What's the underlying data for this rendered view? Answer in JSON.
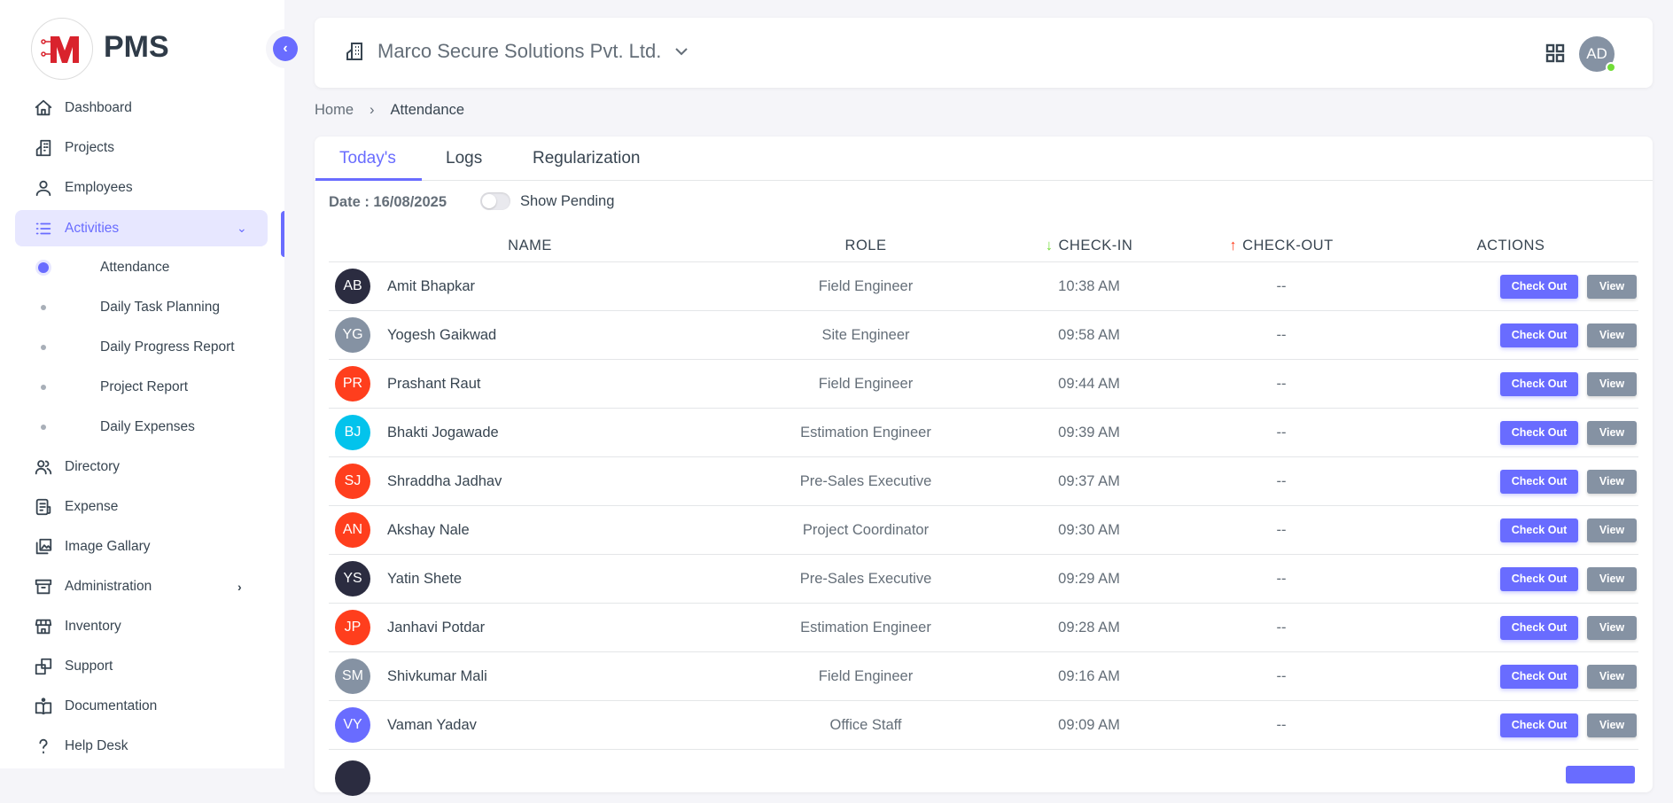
{
  "brand": {
    "name": "PMS",
    "logo_letter": "M"
  },
  "sidebar": {
    "items": [
      {
        "label": "Dashboard",
        "icon": "home-icon"
      },
      {
        "label": "Projects",
        "icon": "building-icon"
      },
      {
        "label": "Employees",
        "icon": "user-icon"
      },
      {
        "label": "Activities",
        "icon": "list-icon",
        "active": true,
        "expanded": true
      },
      {
        "label": "Directory",
        "icon": "contacts-icon"
      },
      {
        "label": "Expense",
        "icon": "receipt-icon"
      },
      {
        "label": "Image Gallary",
        "icon": "gallery-icon"
      },
      {
        "label": "Administration",
        "icon": "archive-icon"
      },
      {
        "label": "Inventory",
        "icon": "store-icon"
      },
      {
        "label": "Support",
        "icon": "copy-icon"
      },
      {
        "label": "Documentation",
        "icon": "book-icon"
      },
      {
        "label": "Help Desk",
        "icon": "question-icon"
      }
    ],
    "sub_items": [
      {
        "label": "Attendance",
        "active": true
      },
      {
        "label": "Daily Task Planning"
      },
      {
        "label": "Daily Progress Report"
      },
      {
        "label": "Project Report"
      },
      {
        "label": "Daily Expenses"
      }
    ]
  },
  "header": {
    "organization": "Marco Secure Solutions Pvt. Ltd.",
    "user_initials": "AD",
    "status_color": "#71dd37"
  },
  "breadcrumb": [
    "Home",
    "Attendance"
  ],
  "tabs": [
    "Today's",
    "Logs",
    "Regularization"
  ],
  "active_tab": "Today's",
  "filters": {
    "date_label": "Date : 16/08/2025",
    "show_pending_label": "Show Pending",
    "show_pending": false
  },
  "table": {
    "columns": [
      "NAME",
      "ROLE",
      "CHECK-IN",
      "CHECK-OUT",
      "ACTIONS"
    ],
    "checkout_btn": "Check Out",
    "view_btn": "View",
    "rows": [
      {
        "initials": "AB",
        "color": "#2b2c40",
        "name": "Amit Bhapkar",
        "role": "Field Engineer",
        "check_in": "10:38 AM",
        "check_out": "--"
      },
      {
        "initials": "YG",
        "color": "#8592a3",
        "name": "Yogesh Gaikwad",
        "role": "Site Engineer",
        "check_in": "09:58 AM",
        "check_out": "--"
      },
      {
        "initials": "PR",
        "color": "#ff3e1d",
        "name": "Prashant Raut",
        "role": "Field Engineer",
        "check_in": "09:44 AM",
        "check_out": "--"
      },
      {
        "initials": "BJ",
        "color": "#03c3ec",
        "name": "Bhakti Jogawade",
        "role": "Estimation Engineer",
        "check_in": "09:39 AM",
        "check_out": "--"
      },
      {
        "initials": "SJ",
        "color": "#ff3e1d",
        "name": "Shraddha Jadhav",
        "role": "Pre-Sales Executive",
        "check_in": "09:37 AM",
        "check_out": "--"
      },
      {
        "initials": "AN",
        "color": "#ff3e1d",
        "name": "Akshay Nale",
        "role": "Project Coordinator",
        "check_in": "09:30 AM",
        "check_out": "--"
      },
      {
        "initials": "YS",
        "color": "#2b2c40",
        "name": "Yatin Shete",
        "role": "Pre-Sales Executive",
        "check_in": "09:29 AM",
        "check_out": "--"
      },
      {
        "initials": "JP",
        "color": "#ff3e1d",
        "name": "Janhavi Potdar",
        "role": "Estimation Engineer",
        "check_in": "09:28 AM",
        "check_out": "--"
      },
      {
        "initials": "SM",
        "color": "#8592a3",
        "name": "Shivkumar Mali",
        "role": "Field Engineer",
        "check_in": "09:16 AM",
        "check_out": "--"
      },
      {
        "initials": "VY",
        "color": "#696cff",
        "name": "Vaman Yadav",
        "role": "Office Staff",
        "check_in": "09:09 AM",
        "check_out": "--"
      }
    ]
  }
}
